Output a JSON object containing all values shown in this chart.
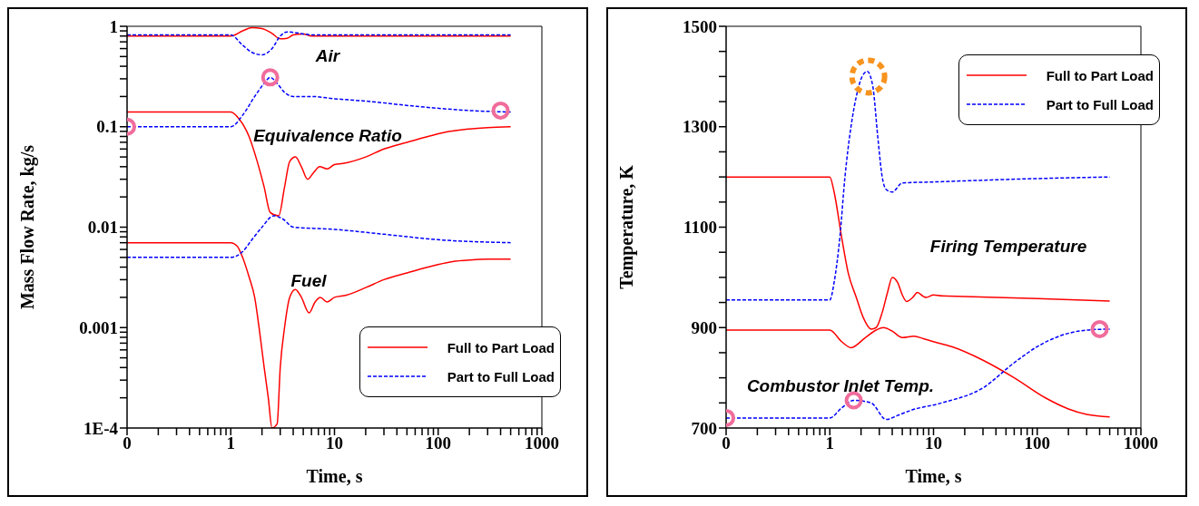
{
  "chart_data": [
    {
      "type": "line",
      "xlabel": "Time, s",
      "ylabel": "Mass Flow Rate, kg/s",
      "log": "xy",
      "grid": false,
      "legend": "bottom right",
      "marker": "none",
      "xlim": [
        0.1,
        1000
      ],
      "xticks": [
        {
          "value": 0.1,
          "label": "0"
        },
        {
          "value": 0.2,
          "label": null
        },
        {
          "value": 0.3,
          "label": null
        },
        {
          "value": 0.4,
          "label": null
        },
        {
          "value": 0.5,
          "label": null
        },
        {
          "value": 0.6,
          "label": null
        },
        {
          "value": 0.7,
          "label": null
        },
        {
          "value": 0.8,
          "label": null
        },
        {
          "value": 0.9,
          "label": null
        },
        1,
        {
          "value": 2,
          "label": null
        },
        {
          "value": 3,
          "label": null
        },
        {
          "value": 4,
          "label": null
        },
        {
          "value": 5,
          "label": null
        },
        {
          "value": 6,
          "label": null
        },
        {
          "value": 7,
          "label": null
        },
        {
          "value": 8,
          "label": null
        },
        {
          "value": 9,
          "label": null
        },
        10,
        {
          "value": 20,
          "label": null
        },
        {
          "value": 30,
          "label": null
        },
        {
          "value": 40,
          "label": null
        },
        {
          "value": 50,
          "label": null
        },
        {
          "value": 60,
          "label": null
        },
        {
          "value": 70,
          "label": null
        },
        {
          "value": 80,
          "label": null
        },
        {
          "value": 90,
          "label": null
        },
        100,
        {
          "value": 200,
          "label": null
        },
        {
          "value": 300,
          "label": null
        },
        {
          "value": 400,
          "label": null
        },
        {
          "value": 500,
          "label": null
        },
        {
          "value": 600,
          "label": null
        },
        {
          "value": 700,
          "label": null
        },
        {
          "value": 800,
          "label": null
        },
        {
          "value": 900,
          "label": null
        },
        1000
      ],
      "ylim": [
        0.0001,
        1
      ],
      "yticks": [
        {
          "value": 0.0001,
          "label": "1E-4"
        },
        {
          "value": 0.0002,
          "label": null
        },
        {
          "value": 0.0003,
          "label": null
        },
        {
          "value": 0.0004,
          "label": null
        },
        {
          "value": 0.0005,
          "label": null
        },
        {
          "value": 0.0006,
          "label": null
        },
        {
          "value": 0.0007,
          "label": null
        },
        {
          "value": 0.0008,
          "label": null
        },
        {
          "value": 0.0009,
          "label": null
        },
        0.001,
        {
          "value": 0.002,
          "label": null
        },
        {
          "value": 0.003,
          "label": null
        },
        {
          "value": 0.004,
          "label": null
        },
        {
          "value": 0.005,
          "label": null
        },
        {
          "value": 0.006,
          "label": null
        },
        {
          "value": 0.007,
          "label": null
        },
        {
          "value": 0.008,
          "label": null
        },
        {
          "value": 0.009,
          "label": null
        },
        0.01,
        {
          "value": 0.02,
          "label": null
        },
        {
          "value": 0.03,
          "label": null
        },
        {
          "value": 0.04,
          "label": null
        },
        {
          "value": 0.05,
          "label": null
        },
        {
          "value": 0.06,
          "label": null
        },
        {
          "value": 0.07,
          "label": null
        },
        {
          "value": 0.08,
          "label": null
        },
        {
          "value": 0.09,
          "label": null
        },
        0.1,
        {
          "value": 0.2,
          "label": null
        },
        {
          "value": 0.3,
          "label": null
        },
        {
          "value": 0.4,
          "label": null
        },
        {
          "value": 0.5,
          "label": null
        },
        {
          "value": 0.6,
          "label": null
        },
        {
          "value": 0.7,
          "label": null
        },
        {
          "value": 0.8,
          "label": null
        },
        {
          "value": 0.9,
          "label": null
        },
        1
      ],
      "annotations": [
        "Air",
        "Equivalence Ratio",
        "Fuel"
      ],
      "series": [
        {
          "name": "Full to Part Load",
          "color": "#ff0000",
          "line_style": "solid",
          "x": [
            0.1,
            1,
            1.3,
            1.6,
            2,
            2.5,
            3,
            3.5,
            4,
            5,
            6,
            8,
            10,
            20,
            100,
            500
          ],
          "values": [
            0.8,
            0.8,
            0.9,
            0.97,
            0.95,
            0.85,
            0.75,
            0.76,
            0.82,
            0.84,
            0.8,
            0.8,
            0.8,
            0.8,
            0.8,
            0.8
          ]
        },
        {
          "name": "Part to Full Load",
          "color": "#0000ff",
          "line_style": "dashed",
          "x": [
            0.1,
            1,
            1.3,
            1.6,
            2,
            2.5,
            3,
            3.5,
            4,
            5,
            6,
            8,
            10,
            20,
            100,
            500
          ],
          "values": [
            0.82,
            0.82,
            0.65,
            0.55,
            0.52,
            0.6,
            0.8,
            0.88,
            0.87,
            0.84,
            0.82,
            0.82,
            0.82,
            0.82,
            0.82,
            0.82
          ]
        },
        {
          "color": "#ff0000",
          "line_style": "solid",
          "x": [
            0.1,
            1,
            1.2,
            1.5,
            1.8,
            2.1,
            2.4,
            2.9,
            3.3,
            3.7,
            4.2,
            4.8,
            5.5,
            6.3,
            7.2,
            8.5,
            10,
            12,
            20,
            30,
            50,
            80,
            130,
            200,
            300,
            500
          ],
          "values": [
            0.14,
            0.14,
            0.12,
            0.08,
            0.045,
            0.025,
            0.014,
            0.013,
            0.025,
            0.045,
            0.05,
            0.04,
            0.03,
            0.035,
            0.04,
            0.038,
            0.042,
            0.043,
            0.05,
            0.06,
            0.07,
            0.08,
            0.09,
            0.095,
            0.098,
            0.1
          ]
        },
        {
          "color": "#0000ff",
          "line_style": "dashed",
          "x": [
            0.1,
            1,
            1.3,
            1.7,
            2.1,
            2.4,
            2.8,
            3.3,
            4,
            6,
            10,
            20,
            60,
            200,
            500
          ],
          "values": [
            0.1,
            0.1,
            0.13,
            0.2,
            0.27,
            0.31,
            0.27,
            0.22,
            0.2,
            0.2,
            0.19,
            0.18,
            0.16,
            0.145,
            0.14
          ]
        },
        {
          "color": "#ff0000",
          "line_style": "solid",
          "x": [
            0.1,
            1,
            1.15,
            1.3,
            1.5,
            1.7,
            1.9,
            2.1,
            2.3,
            2.5,
            2.8,
            3,
            3.3,
            3.7,
            4.2,
            4.8,
            5.7,
            6.5,
            7.3,
            8.5,
            10,
            13,
            20,
            30,
            50,
            80,
            130,
            200,
            300,
            500
          ],
          "values": [
            0.007,
            0.007,
            0.0065,
            0.005,
            0.0032,
            0.002,
            0.0009,
            0.0004,
            0.0002,
            0.0001,
            0.00011,
            0.0004,
            0.001,
            0.002,
            0.0024,
            0.002,
            0.0014,
            0.0018,
            0.002,
            0.0018,
            0.002,
            0.0021,
            0.0025,
            0.003,
            0.0035,
            0.004,
            0.0045,
            0.0047,
            0.0048,
            0.0048
          ]
        },
        {
          "color": "#0000ff",
          "line_style": "dashed",
          "x": [
            0.1,
            1,
            1.3,
            1.6,
            2,
            2.6,
            3.2,
            4,
            10,
            30,
            100,
            500
          ],
          "values": [
            0.005,
            0.005,
            0.0057,
            0.0075,
            0.01,
            0.013,
            0.012,
            0.01,
            0.0095,
            0.0085,
            0.0075,
            0.007
          ]
        },
        {
          "type": "scatter",
          "color": "#f06c9b",
          "marker": "circle",
          "x": [
            0.1,
            2.4,
            400
          ],
          "values": [
            0.1,
            0.31,
            0.145
          ]
        }
      ]
    },
    {
      "type": "line",
      "xlabel": "Time, s",
      "ylabel": "Temperature, K",
      "log": "x",
      "grid": false,
      "legend": "top right",
      "marker": "none",
      "xlim": [
        0.1,
        1000
      ],
      "xticks": [
        {
          "value": 0.1,
          "label": "0"
        },
        {
          "value": 0.2,
          "label": null
        },
        {
          "value": 0.3,
          "label": null
        },
        {
          "value": 0.4,
          "label": null
        },
        {
          "value": 0.5,
          "label": null
        },
        {
          "value": 0.6,
          "label": null
        },
        {
          "value": 0.7,
          "label": null
        },
        {
          "value": 0.8,
          "label": null
        },
        {
          "value": 0.9,
          "label": null
        },
        1,
        {
          "value": 2,
          "label": null
        },
        {
          "value": 3,
          "label": null
        },
        {
          "value": 4,
          "label": null
        },
        {
          "value": 5,
          "label": null
        },
        {
          "value": 6,
          "label": null
        },
        {
          "value": 7,
          "label": null
        },
        {
          "value": 8,
          "label": null
        },
        {
          "value": 9,
          "label": null
        },
        10,
        {
          "value": 20,
          "label": null
        },
        {
          "value": 30,
          "label": null
        },
        {
          "value": 40,
          "label": null
        },
        {
          "value": 50,
          "label": null
        },
        {
          "value": 60,
          "label": null
        },
        {
          "value": 70,
          "label": null
        },
        {
          "value": 80,
          "label": null
        },
        {
          "value": 90,
          "label": null
        },
        100,
        {
          "value": 200,
          "label": null
        },
        {
          "value": 300,
          "label": null
        },
        {
          "value": 400,
          "label": null
        },
        {
          "value": 500,
          "label": null
        },
        {
          "value": 600,
          "label": null
        },
        {
          "value": 700,
          "label": null
        },
        {
          "value": 800,
          "label": null
        },
        {
          "value": 900,
          "label": null
        },
        1000
      ],
      "ylim": [
        700,
        1500
      ],
      "yticks": [
        700,
        {
          "value": 750,
          "label": null
        },
        {
          "value": 800,
          "label": null
        },
        {
          "value": 850,
          "label": null
        },
        900,
        {
          "value": 950,
          "label": null
        },
        {
          "value": 1000,
          "label": null
        },
        {
          "value": 1050,
          "label": null
        },
        1100,
        {
          "value": 1150,
          "label": null
        },
        {
          "value": 1200,
          "label": null
        },
        {
          "value": 1250,
          "label": null
        },
        1300,
        {
          "value": 1350,
          "label": null
        },
        {
          "value": 1400,
          "label": null
        },
        {
          "value": 1450,
          "label": null
        },
        1500
      ],
      "annotations": [
        "Firing Temperature",
        "Combustor Inlet Temp."
      ],
      "series": [
        {
          "name": "Full to Part Load",
          "color": "#ff0000",
          "line_style": "solid",
          "x": [
            0.1,
            1,
            1.1,
            1.3,
            1.5,
            1.8,
            2.1,
            2.5,
            2.8,
            3.2,
            3.6,
            4,
            4.5,
            5,
            5.5,
            6.3,
            7,
            8,
            8.5,
            10,
            12,
            20,
            100,
            500
          ],
          "values": [
            1200,
            1200,
            1170,
            1080,
            1010,
            960,
            920,
            897,
            900,
            930,
            970,
            1000,
            990,
            965,
            952,
            960,
            970,
            962,
            960,
            965,
            963,
            962,
            958,
            953
          ]
        },
        {
          "name": "Part to Full Load",
          "color": "#0000ff",
          "line_style": "dashed",
          "x": [
            0.1,
            1,
            1.1,
            1.25,
            1.4,
            1.6,
            1.8,
            2.05,
            2.3,
            2.6,
            2.9,
            3.2,
            3.5,
            4,
            5,
            10,
            50,
            500
          ],
          "values": [
            955,
            955,
            990,
            1080,
            1200,
            1300,
            1360,
            1400,
            1410,
            1380,
            1280,
            1200,
            1175,
            1170,
            1188,
            1190,
            1195,
            1200
          ]
        },
        {
          "color": "#ff0000",
          "line_style": "solid",
          "x": [
            0.1,
            1,
            1.3,
            1.6,
            2.2,
            2.8,
            3.3,
            4,
            5,
            6.5,
            8,
            10,
            15,
            30,
            60,
            120,
            200,
            300,
            500
          ],
          "values": [
            895,
            895,
            872,
            860,
            880,
            895,
            900,
            893,
            880,
            883,
            878,
            872,
            862,
            835,
            800,
            760,
            738,
            727,
            722
          ]
        },
        {
          "color": "#0000ff",
          "line_style": "dashed",
          "x": [
            0.1,
            1,
            1.3,
            1.7,
            2.5,
            3.5,
            4.5,
            6,
            12,
            30,
            60,
            100,
            150,
            300,
            500
          ],
          "values": [
            720,
            720,
            740,
            755,
            750,
            717,
            725,
            735,
            750,
            780,
            830,
            862,
            880,
            895,
            897
          ]
        },
        {
          "type": "scatter",
          "color": "#f06c9b",
          "marker": "circle",
          "x": [
            0.1,
            1.7,
            400
          ],
          "values": [
            720,
            755,
            897
          ]
        },
        {
          "type": "scatter",
          "color": "#f7931e",
          "marker": "circle",
          "line_style": "dotted",
          "x": [
            2.35
          ],
          "values": [
            1400
          ]
        }
      ]
    }
  ]
}
